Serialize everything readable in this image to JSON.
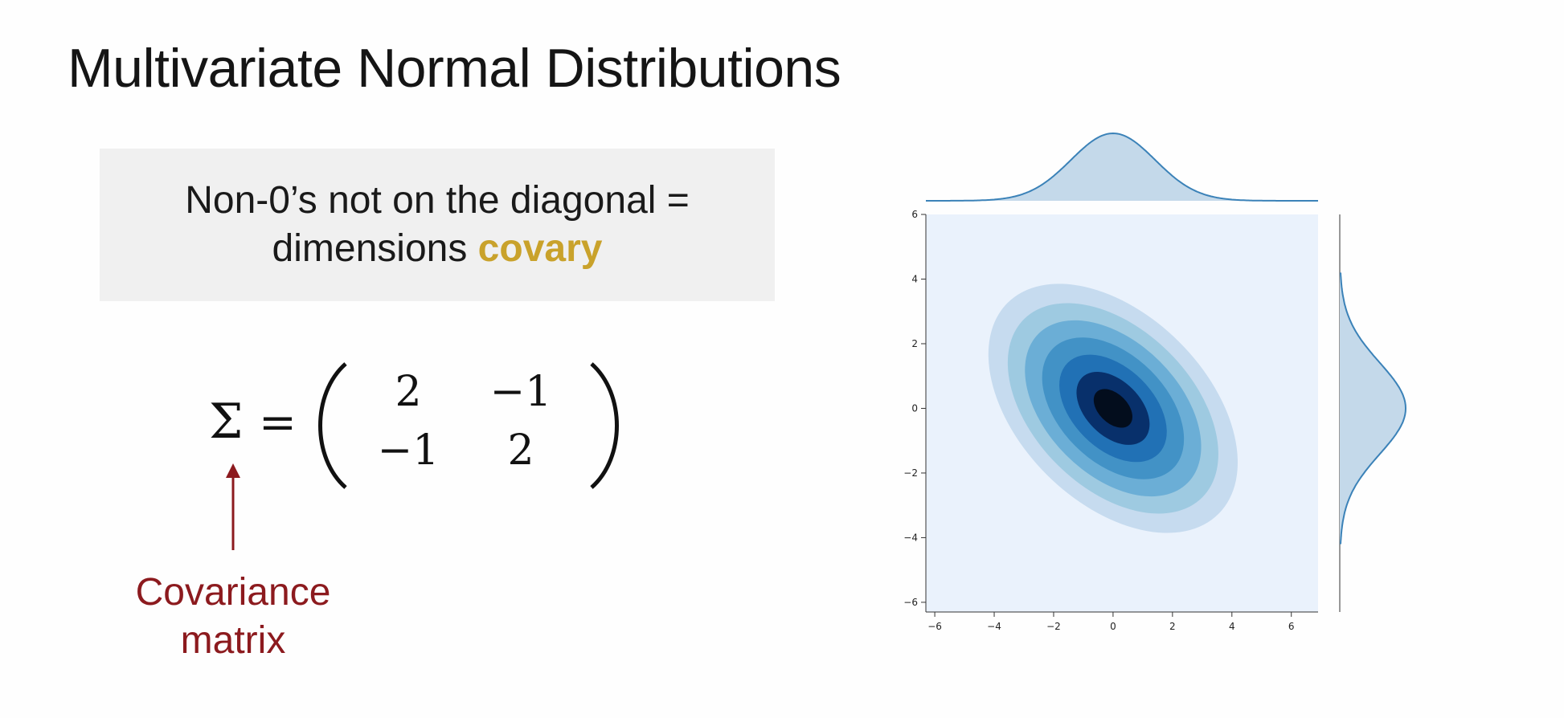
{
  "slide": {
    "title": "Multivariate Normal Distributions"
  },
  "callout": {
    "line1": "Non-0’s not on the diagonal =",
    "line2_prefix": "dimensions ",
    "line2_highlight": "covary",
    "highlight_color": "#c9a22b",
    "background_color": "#f0f0f0"
  },
  "formula": {
    "symbol": "Σ",
    "equals": "=",
    "matrix": [
      [
        "2",
        "−1"
      ],
      [
        "−1",
        "2"
      ]
    ]
  },
  "annotation": {
    "line1": "Covariance",
    "line2": "matrix",
    "color": "#8c1a1e"
  },
  "chart_data": {
    "type": "heatmap",
    "subtype": "joint kde plot (bivariate contour with marginal densities)",
    "title": "",
    "xlabel": "",
    "ylabel": "",
    "xlim": [
      -6.3,
      6.9
    ],
    "ylim": [
      -6.3,
      6.0
    ],
    "x_ticks": [
      "−6",
      "−4",
      "−2",
      "0",
      "2",
      "4",
      "6"
    ],
    "y_ticks": [
      "−6",
      "−4",
      "−2",
      "0",
      "2",
      "4",
      "6"
    ],
    "x_tick_values": [
      -6,
      -4,
      -2,
      0,
      2,
      4,
      6
    ],
    "y_tick_values": [
      -6,
      -4,
      -2,
      0,
      2,
      4,
      6
    ],
    "mean": [
      0,
      0
    ],
    "covariance": [
      [
        2,
        -1
      ],
      [
        -1,
        2
      ]
    ],
    "contour_levels_mahalanobis": [
      2.9,
      2.45,
      2.05,
      1.65,
      1.25,
      0.85,
      0.45
    ],
    "contour_colors": [
      "#c6dbef",
      "#9ecae1",
      "#6baed6",
      "#4292c6",
      "#2171b5",
      "#08306b",
      "#030d1d"
    ],
    "background_color": "#eaf2fc",
    "marginal_line_color": "#3b82b8",
    "marginal_fill_color": "#c4d9ea",
    "marginal_x_density_peak": 0.28,
    "marginal_y_density_peak": 0.28,
    "grid": false,
    "legend": "none"
  }
}
